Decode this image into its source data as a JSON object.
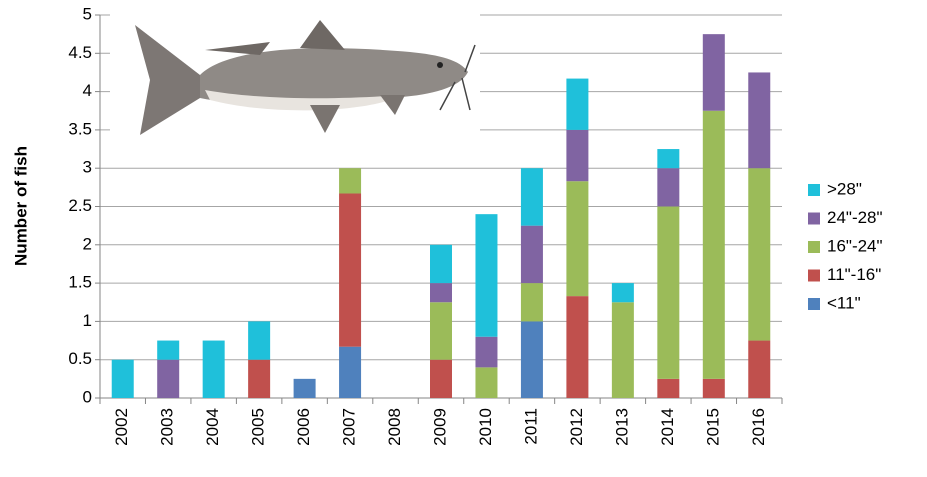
{
  "chart_data": {
    "type": "stacked-bar",
    "ylabel": "Number of fish",
    "categories": [
      "2002",
      "2003",
      "2004",
      "2005",
      "2006",
      "2007",
      "2008",
      "2009",
      "2010",
      "2011",
      "2012",
      "2013",
      "2014",
      "2015",
      "2016"
    ],
    "series": [
      {
        "name": "<11\"",
        "color": "#4f81bd",
        "values": [
          0,
          0,
          0,
          0,
          0.25,
          0.67,
          0,
          0,
          0,
          1.0,
          0,
          0,
          0,
          0,
          0
        ]
      },
      {
        "name": "11\"-16\"",
        "color": "#c0504d",
        "values": [
          0,
          0,
          0,
          0.5,
          0,
          2.0,
          0,
          0.5,
          0,
          0,
          1.33,
          0,
          0.25,
          0.25,
          0.75
        ]
      },
      {
        "name": "16\"-24\"",
        "color": "#9bbb59",
        "values": [
          0,
          0,
          0,
          0,
          0,
          0.33,
          0,
          0.75,
          0.4,
          0.5,
          1.5,
          1.25,
          2.25,
          3.5,
          2.25
        ]
      },
      {
        "name": "24\"-28\"",
        "color": "#8064a2",
        "values": [
          0,
          0.5,
          0,
          0,
          0,
          0,
          0,
          0.25,
          0.4,
          0.75,
          0.67,
          0,
          0.5,
          1.0,
          1.25
        ]
      },
      {
        "name": ">28\"",
        "color": "#1fc0da",
        "values": [
          0.5,
          0.25,
          0.75,
          0.5,
          0,
          0,
          0,
          0.5,
          1.6,
          0.75,
          0.67,
          0.25,
          0.25,
          0,
          0
        ]
      }
    ],
    "ylim": [
      0,
      5
    ],
    "yticks": [
      0,
      0.5,
      1,
      1.5,
      2,
      2.5,
      3,
      3.5,
      4,
      4.5,
      5
    ],
    "grid": true
  }
}
